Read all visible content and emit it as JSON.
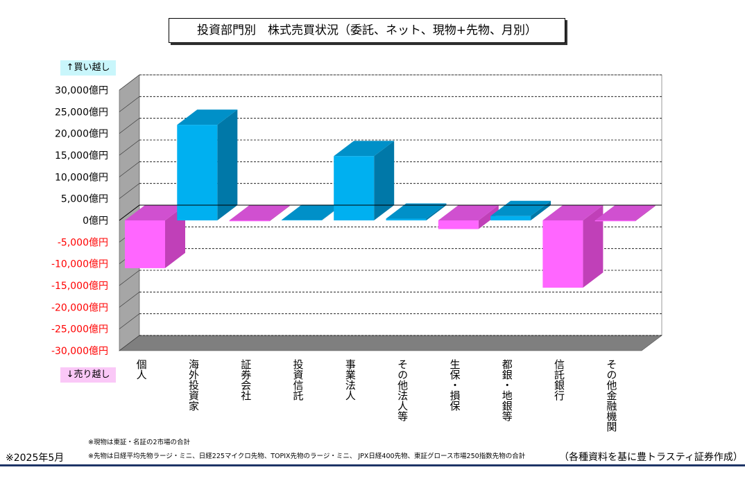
{
  "title": "投資部門別　株式売買状況（委託、ネット、現物+先物、月別）",
  "legend": {
    "buy": "↑買い越し",
    "sell": "↓売り越し"
  },
  "notes": [
    "※現物は東証・名証の2市場の合計",
    "※先物は日経平均先物ラージ・ミニ、日経225マイクロ先物、TOPIX先物のラージ・ミニ、 JPX日経400先物、東証グロース市場250指数先物の合計"
  ],
  "date": "※2025年5月",
  "source": "（各種資料を基に豊トラスティ証券作成）",
  "colors": {
    "positive_front": "#00b0f0",
    "positive_side": "#0078a8",
    "positive_top": "#0090c8",
    "negative_front": "#ff66ff",
    "negative_side": "#c040b8",
    "negative_top": "#d050d0",
    "negative_tick": "#ff0000",
    "wall": "#ffffff",
    "side_wall": "#a6a6a6",
    "floor": "#7f7f7f"
  },
  "chart_data": {
    "type": "bar",
    "categories": [
      "個人",
      "海外投資家",
      "証券会社",
      "投資信託",
      "事業法人",
      "その他法人等",
      "生保・損保",
      "都銀・地銀等",
      "信託銀行",
      "その他金融機関"
    ],
    "values": [
      -11000,
      22000,
      -200,
      100,
      14800,
      400,
      -2000,
      1000,
      -15500,
      -200
    ],
    "ylim": [
      -30000,
      30000
    ],
    "ytick_values": [
      30000,
      25000,
      20000,
      15000,
      10000,
      5000,
      0,
      -5000,
      -10000,
      -15000,
      -20000,
      -25000,
      -30000
    ],
    "ytick_labels": [
      "30,000億円",
      "25,000億円",
      "20,000億円",
      "15,000億円",
      "10,000億円",
      "5,000億円",
      "0億円",
      "-5,000億円",
      "-10,000億円",
      "-15,000億円",
      "-20,000億円",
      "-25,000億円",
      "-30,000億円"
    ],
    "grid": true,
    "three_d": true
  }
}
